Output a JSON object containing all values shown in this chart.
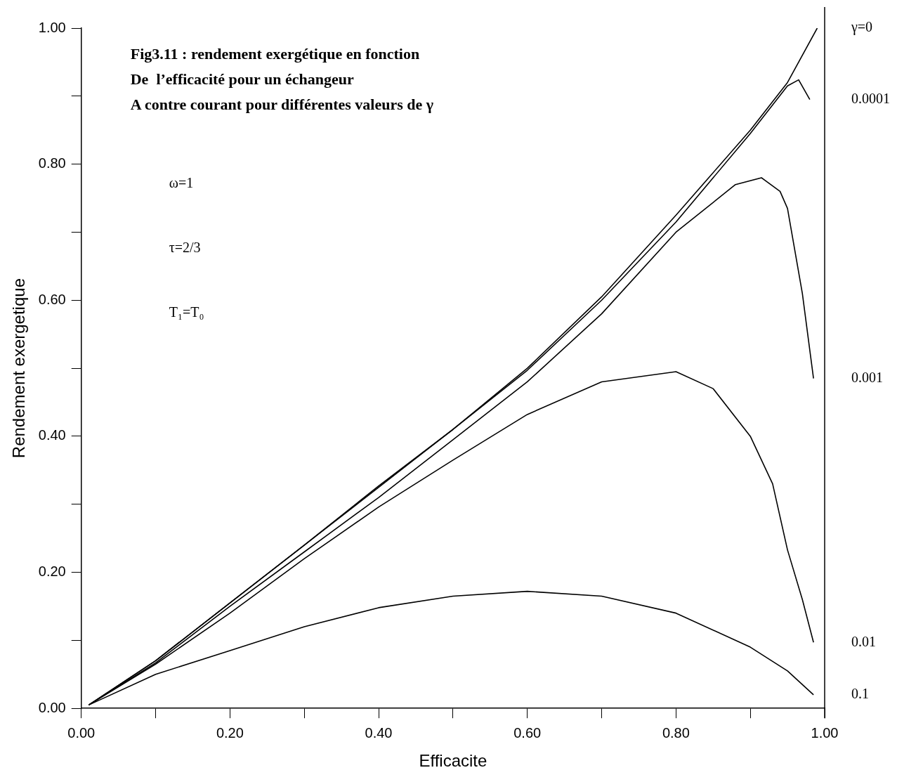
{
  "chart_data": {
    "type": "line",
    "title": "Fig3.11 : rendement exergétique en fonction\nDe  l’efficacité pour un échangeur\nA contre courant pour différentes valeurs de γ",
    "xlabel": "Efficacite",
    "ylabel": "Rendement exergetique",
    "annotations": [
      "ω=1",
      "τ=2/3",
      "T₁=T₀"
    ],
    "xlim": [
      0,
      1
    ],
    "ylim": [
      0,
      1
    ],
    "xticks": [
      {
        "value": 0,
        "label": "0.00"
      },
      {
        "value": 0.1,
        "label": null
      },
      {
        "value": 0.2,
        "label": "0.20"
      },
      {
        "value": 0.3,
        "label": null
      },
      {
        "value": 0.4,
        "label": "0.40"
      },
      {
        "value": 0.5,
        "label": null
      },
      {
        "value": 0.6,
        "label": "0.60"
      },
      {
        "value": 0.7,
        "label": null
      },
      {
        "value": 0.8,
        "label": "0.80"
      },
      {
        "value": 0.9,
        "label": null
      },
      {
        "value": 1,
        "label": "1.00"
      }
    ],
    "yticks": [
      {
        "value": 0,
        "label": "0.00"
      },
      {
        "value": 0.1,
        "label": null
      },
      {
        "value": 0.2,
        "label": "0.20"
      },
      {
        "value": 0.3,
        "label": null
      },
      {
        "value": 0.4,
        "label": "0.40"
      },
      {
        "value": 0.5,
        "label": null
      },
      {
        "value": 0.6,
        "label": "0.60"
      },
      {
        "value": 0.7,
        "label": null
      },
      {
        "value": 0.8,
        "label": "0.80"
      },
      {
        "value": 0.9,
        "label": null
      },
      {
        "value": 1,
        "label": "1.00"
      }
    ],
    "grid": false,
    "legend": false,
    "marker": "none",
    "line_style": "solid",
    "series": [
      {
        "name": "γ=0",
        "color": "#000000",
        "x": [
          0.01,
          0.1,
          0.2,
          0.3,
          0.4,
          0.5,
          0.6,
          0.7,
          0.8,
          0.9,
          0.95,
          0.99
        ],
        "values": [
          0.005,
          0.07,
          0.155,
          0.24,
          0.327,
          0.41,
          0.5,
          0.605,
          0.725,
          0.85,
          0.92,
          1.0
        ]
      },
      {
        "name": "0.0001",
        "color": "#000000",
        "x": [
          0.01,
          0.1,
          0.2,
          0.3,
          0.4,
          0.5,
          0.6,
          0.7,
          0.8,
          0.9,
          0.95,
          0.965,
          0.98
        ],
        "values": [
          0.005,
          0.07,
          0.155,
          0.24,
          0.325,
          0.41,
          0.497,
          0.6,
          0.715,
          0.845,
          0.915,
          0.924,
          0.895
        ]
      },
      {
        "name": "0.001",
        "color": "#000000",
        "x": [
          0.01,
          0.1,
          0.2,
          0.3,
          0.4,
          0.5,
          0.6,
          0.7,
          0.8,
          0.88,
          0.915,
          0.94,
          0.95,
          0.97,
          0.985
        ],
        "values": [
          0.005,
          0.067,
          0.15,
          0.23,
          0.31,
          0.395,
          0.48,
          0.58,
          0.7,
          0.77,
          0.78,
          0.76,
          0.735,
          0.61,
          0.485
        ]
      },
      {
        "name": "0.01",
        "color": "#000000",
        "x": [
          0.01,
          0.1,
          0.2,
          0.3,
          0.4,
          0.5,
          0.6,
          0.7,
          0.8,
          0.85,
          0.9,
          0.93,
          0.95,
          0.97,
          0.985
        ],
        "values": [
          0.005,
          0.065,
          0.14,
          0.22,
          0.296,
          0.365,
          0.432,
          0.48,
          0.495,
          0.47,
          0.4,
          0.33,
          0.233,
          0.16,
          0.097
        ]
      },
      {
        "name": "0.1",
        "color": "#000000",
        "x": [
          0.01,
          0.1,
          0.2,
          0.3,
          0.4,
          0.5,
          0.6,
          0.7,
          0.8,
          0.9,
          0.95,
          0.985
        ],
        "values": [
          0.005,
          0.05,
          0.085,
          0.12,
          0.148,
          0.165,
          0.172,
          0.165,
          0.14,
          0.09,
          0.055,
          0.02
        ]
      }
    ]
  }
}
